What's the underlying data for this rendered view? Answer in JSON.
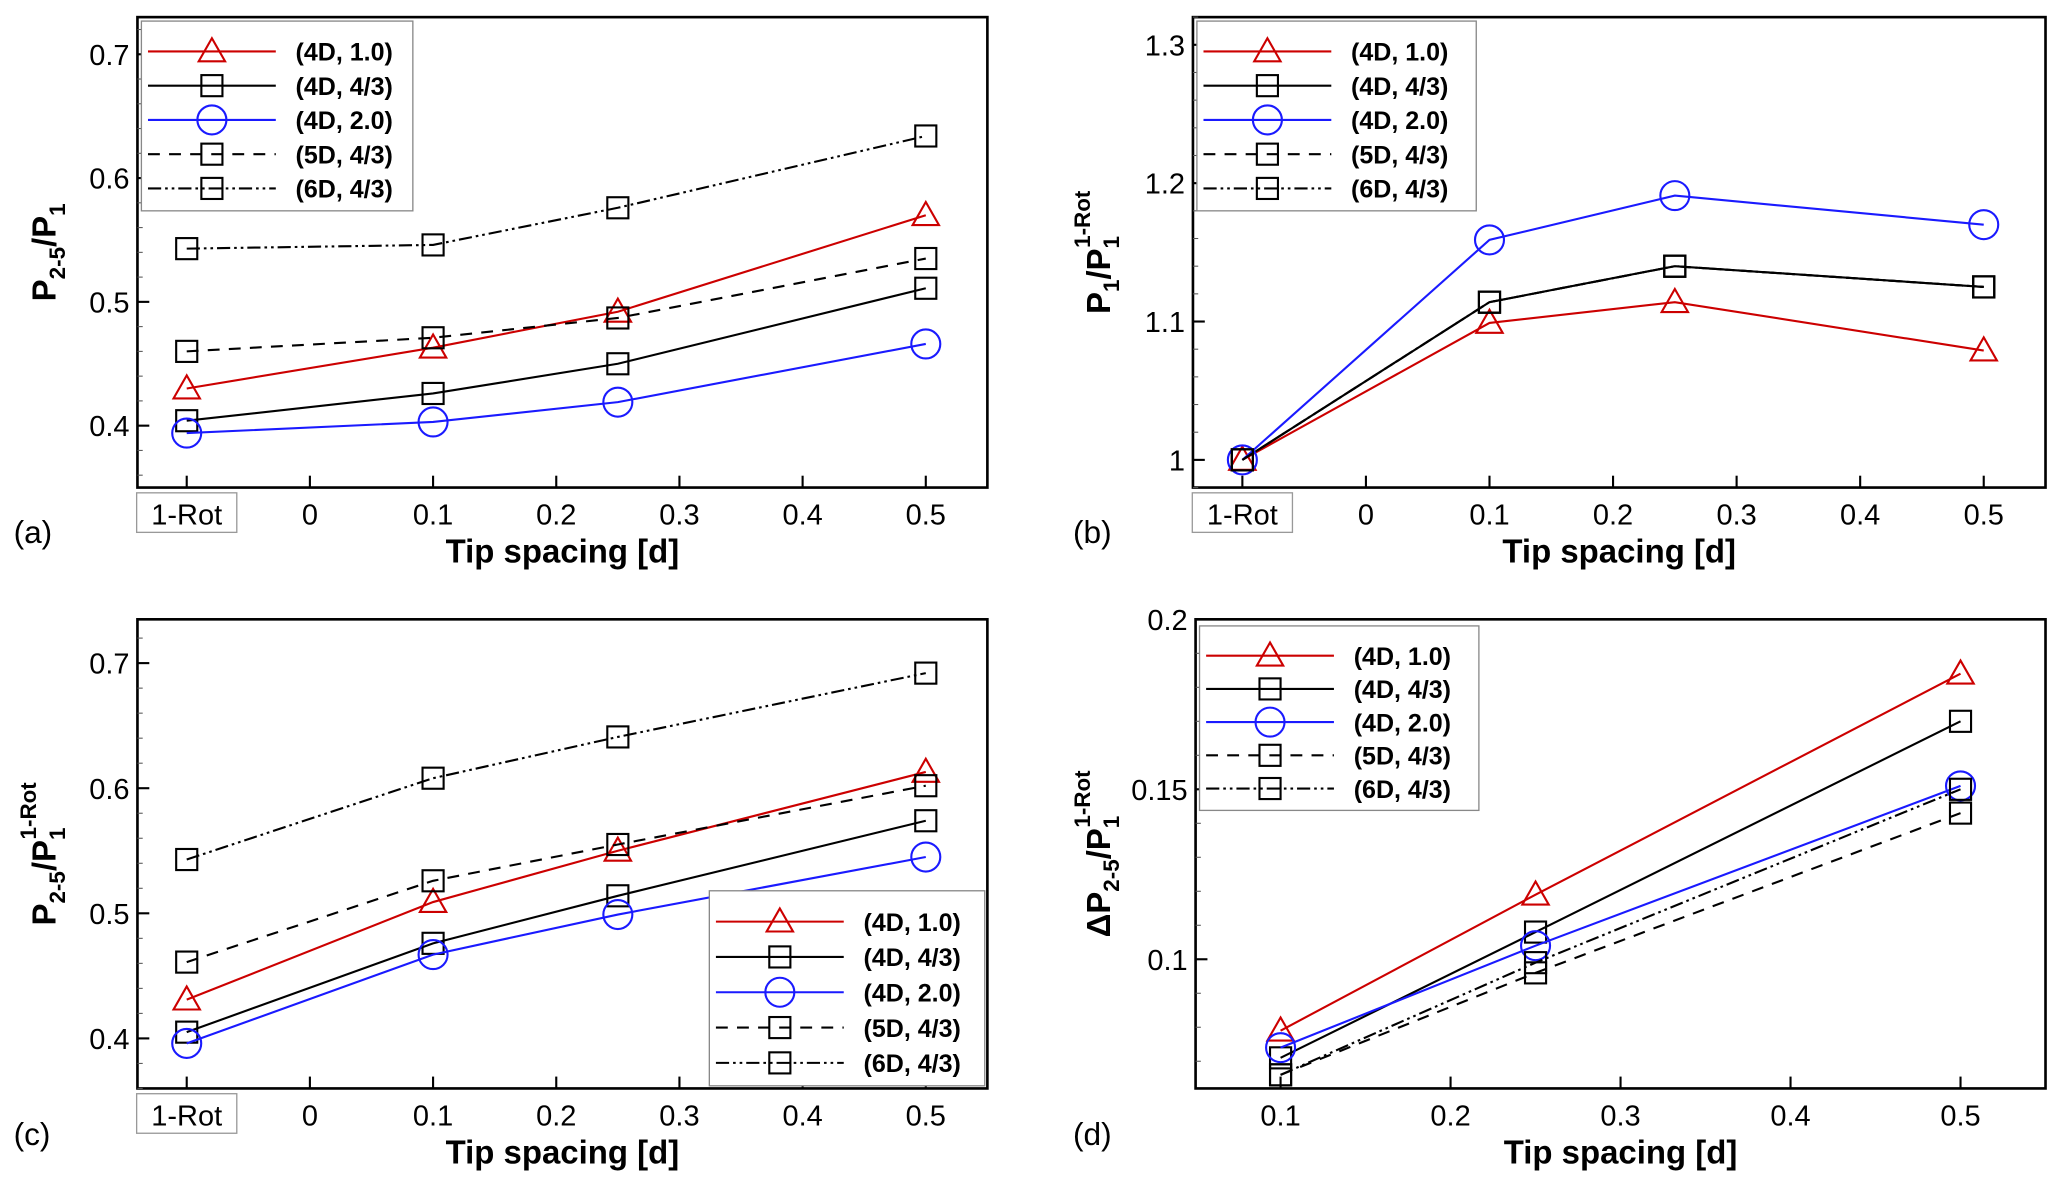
{
  "chart_data": [
    {
      "panel": "(a)",
      "type": "line",
      "xlabel": "Tip spacing [d]",
      "ylabel": {
        "main": "P",
        "sub": "2-5",
        "slash": "/",
        "main2": "P",
        "sub2": "1",
        "sup2": ""
      },
      "ylabel_text": "P_{2-5}/P_1",
      "x_ticks": [
        "1-Rot",
        "0",
        "0.1",
        "0.2",
        "0.3",
        "0.4",
        "0.5"
      ],
      "x_tick_values": [
        -0.1,
        0,
        0.1,
        0.2,
        0.3,
        0.4,
        0.5
      ],
      "xlim": [
        -0.14,
        0.55
      ],
      "y_ticks": [
        "0.4",
        "0.5",
        "0.6",
        "0.7"
      ],
      "y_tick_values": [
        0.4,
        0.5,
        0.6,
        0.7
      ],
      "ylim": [
        0.35,
        0.73
      ],
      "y_minor_step": 0.02,
      "x": [
        -0.1,
        0.1,
        0.25,
        0.5
      ],
      "legend_position": "top-left",
      "series": [
        {
          "name": "(4D, 1.0)",
          "values": [
            0.43,
            0.463,
            0.492,
            0.57
          ]
        },
        {
          "name": "(4D, 4/3)",
          "values": [
            0.404,
            0.426,
            0.45,
            0.511
          ]
        },
        {
          "name": "(4D, 2.0)",
          "values": [
            0.394,
            0.403,
            0.419,
            0.466
          ]
        },
        {
          "name": "(5D, 4/3)",
          "values": [
            0.46,
            0.471,
            0.487,
            0.535
          ]
        },
        {
          "name": "(6D, 4/3)",
          "values": [
            0.543,
            0.546,
            0.576,
            0.634
          ]
        }
      ]
    },
    {
      "panel": "(b)",
      "type": "line",
      "xlabel": "Tip spacing [d]",
      "ylabel": {
        "main": "P",
        "sub": "1",
        "slash": "/",
        "main2": "P",
        "sub2": "1",
        "sup2": "1-Rot"
      },
      "ylabel_text": "P_1/P_1^{1-Rot}",
      "x_ticks": [
        "1-Rot",
        "0",
        "0.1",
        "0.2",
        "0.3",
        "0.4",
        "0.5"
      ],
      "x_tick_values": [
        -0.1,
        0,
        0.1,
        0.2,
        0.3,
        0.4,
        0.5
      ],
      "xlim": [
        -0.14,
        0.55
      ],
      "y_ticks": [
        "1",
        "1.1",
        "1.2",
        "1.3"
      ],
      "y_tick_values": [
        1.0,
        1.1,
        1.2,
        1.3
      ],
      "ylim": [
        0.98,
        1.32
      ],
      "y_minor_step": 0.02,
      "x": [
        -0.1,
        0.1,
        0.25,
        0.5
      ],
      "legend_position": "top-left",
      "series": [
        {
          "name": "(4D, 1.0)",
          "values": [
            1.0,
            1.099,
            1.114,
            1.079
          ]
        },
        {
          "name": "(4D, 4/3)",
          "values": [
            1.0,
            1.114,
            1.14,
            1.125
          ]
        },
        {
          "name": "(4D, 2.0)",
          "values": [
            1.0,
            1.159,
            1.191,
            1.17
          ]
        },
        {
          "name": "(5D, 4/3)",
          "values": [
            1.0,
            1.114,
            1.14,
            1.125
          ]
        },
        {
          "name": "(6D, 4/3)",
          "values": [
            1.0,
            1.114,
            1.14,
            1.125
          ]
        }
      ]
    },
    {
      "panel": "(c)",
      "type": "line",
      "xlabel": "Tip spacing [d]",
      "ylabel": {
        "main": "P",
        "sub": "2-5",
        "slash": "/",
        "main2": "P",
        "sub2": "1",
        "sup2": "1-Rot"
      },
      "ylabel_text": "P_{2-5}/P_1^{1-Rot}",
      "x_ticks": [
        "1-Rot",
        "0",
        "0.1",
        "0.2",
        "0.3",
        "0.4",
        "0.5"
      ],
      "x_tick_values": [
        -0.1,
        0,
        0.1,
        0.2,
        0.3,
        0.4,
        0.5
      ],
      "xlim": [
        -0.14,
        0.55
      ],
      "y_ticks": [
        "0.4",
        "0.5",
        "0.6",
        "0.7"
      ],
      "y_tick_values": [
        0.4,
        0.5,
        0.6,
        0.7
      ],
      "ylim": [
        0.36,
        0.735
      ],
      "y_minor_step": 0.02,
      "x": [
        -0.1,
        0.1,
        0.25,
        0.5
      ],
      "legend_position": "bottom-right",
      "series": [
        {
          "name": "(4D, 1.0)",
          "values": [
            0.431,
            0.509,
            0.55,
            0.613
          ]
        },
        {
          "name": "(4D, 4/3)",
          "values": [
            0.405,
            0.476,
            0.514,
            0.574
          ]
        },
        {
          "name": "(4D, 2.0)",
          "values": [
            0.396,
            0.467,
            0.499,
            0.545
          ]
        },
        {
          "name": "(5D, 4/3)",
          "values": [
            0.461,
            0.526,
            0.555,
            0.602
          ]
        },
        {
          "name": "(6D, 4/3)",
          "values": [
            0.543,
            0.608,
            0.641,
            0.692
          ]
        }
      ]
    },
    {
      "panel": "(d)",
      "type": "line",
      "xlabel": "Tip spacing [d]",
      "ylabel": {
        "main": "ΔP",
        "sub": "2-5",
        "slash": "/",
        "main2": "P",
        "sub2": "1",
        "sup2": "1-Rot"
      },
      "ylabel_text": "ΔP_{2-5}/P_1^{1-Rot}",
      "x_ticks": [
        "0.1",
        "0.2",
        "0.3",
        "0.4",
        "0.5"
      ],
      "x_tick_values": [
        0.1,
        0.2,
        0.3,
        0.4,
        0.5
      ],
      "xlim": [
        0.05,
        0.55
      ],
      "y_ticks": [
        "0.1",
        "0.15",
        "0.2"
      ],
      "y_tick_values": [
        0.1,
        0.15,
        0.2
      ],
      "ylim": [
        0.062,
        0.2
      ],
      "y_minor_step": 0.01,
      "x": [
        0.1,
        0.25,
        0.5
      ],
      "legend_position": "top-left",
      "series": [
        {
          "name": "(4D, 1.0)",
          "values": [
            0.079,
            0.119,
            0.184
          ]
        },
        {
          "name": "(4D, 4/3)",
          "values": [
            0.071,
            0.108,
            0.17
          ]
        },
        {
          "name": "(4D, 2.0)",
          "values": [
            0.074,
            0.104,
            0.151
          ]
        },
        {
          "name": "(5D, 4/3)",
          "values": [
            0.066,
            0.096,
            0.143
          ]
        },
        {
          "name": "(6D, 4/3)",
          "values": [
            0.066,
            0.099,
            0.15
          ]
        }
      ]
    }
  ],
  "series_styles": [
    {
      "name": "(4D, 1.0)",
      "color": "#cc0000",
      "dash": "solid",
      "marker": "triangle"
    },
    {
      "name": "(4D, 4/3)",
      "color": "#000000",
      "dash": "solid",
      "marker": "square"
    },
    {
      "name": "(4D, 2.0)",
      "color": "#1a1aff",
      "dash": "solid",
      "marker": "circle"
    },
    {
      "name": "(5D, 4/3)",
      "color": "#000000",
      "dash": "dashed",
      "marker": "square"
    },
    {
      "name": "(6D, 4/3)",
      "color": "#000000",
      "dash": "dash-dot-dot",
      "marker": "square"
    }
  ],
  "panels": {
    "a": {
      "label": "(a)"
    },
    "b": {
      "label": "(b)"
    },
    "c": {
      "label": "(c)"
    },
    "d": {
      "label": "(d)"
    }
  }
}
